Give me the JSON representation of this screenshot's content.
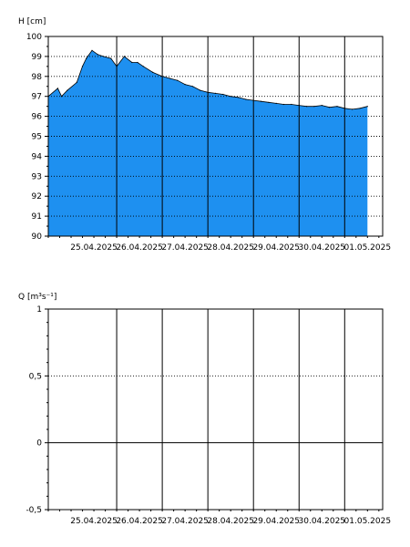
{
  "chart_data": [
    {
      "type": "area",
      "ylabel": "H [cm]",
      "ylim": [
        90,
        100
      ],
      "yticks": [
        "90",
        "91",
        "92",
        "93",
        "94",
        "95",
        "96",
        "97",
        "98",
        "99",
        "100"
      ],
      "xticks": [
        "25.04.2025",
        "26.04.2025",
        "27.04.2025",
        "28.04.2025",
        "29.04.2025",
        "30.04.2025",
        "01.05.2025"
      ],
      "xlim": [
        "2025-04-24T12:00",
        "2025-05-01T20:00"
      ],
      "fill_color": "#1E90F0",
      "series": [
        {
          "x": [
            "2025-04-24T12:00",
            "2025-04-24T17:00",
            "2025-04-24T19:00",
            "2025-04-24T22:00",
            "2025-04-25T03:00",
            "2025-04-25T06:00",
            "2025-04-25T08:00",
            "2025-04-25T11:00",
            "2025-04-25T14:00",
            "2025-04-25T17:00",
            "2025-04-25T21:00",
            "2025-04-26T00:00",
            "2025-04-26T04:00",
            "2025-04-26T08:00",
            "2025-04-26T11:00",
            "2025-04-26T14:00",
            "2025-04-26T19:00",
            "2025-04-27T00:00",
            "2025-04-27T04:00",
            "2025-04-27T08:00",
            "2025-04-27T12:00",
            "2025-04-27T16:00",
            "2025-04-27T20:00",
            "2025-04-28T00:00",
            "2025-04-28T04:00",
            "2025-04-28T08:00",
            "2025-04-28T12:00",
            "2025-04-28T16:00",
            "2025-04-28T20:00",
            "2025-04-29T00:00",
            "2025-04-29T04:00",
            "2025-04-29T08:00",
            "2025-04-29T12:00",
            "2025-04-29T16:00",
            "2025-04-29T20:00",
            "2025-04-30T00:00",
            "2025-04-30T04:00",
            "2025-04-30T08:00",
            "2025-04-30T12:00",
            "2025-04-30T16:00",
            "2025-04-30T20:00",
            "2025-05-01T00:00",
            "2025-05-01T04:00",
            "2025-05-01T08:00",
            "2025-05-01T12:00"
          ],
          "y": [
            97.0,
            97.4,
            97.0,
            97.3,
            97.7,
            98.5,
            98.9,
            99.3,
            99.1,
            99.0,
            98.9,
            98.5,
            99.0,
            98.7,
            98.7,
            98.5,
            98.2,
            98.0,
            97.9,
            97.8,
            97.6,
            97.5,
            97.3,
            97.2,
            97.15,
            97.1,
            97.0,
            96.95,
            96.85,
            96.8,
            96.75,
            96.7,
            96.65,
            96.6,
            96.6,
            96.55,
            96.5,
            96.5,
            96.55,
            96.45,
            96.5,
            96.4,
            96.35,
            96.4,
            96.5
          ]
        }
      ]
    },
    {
      "type": "line",
      "ylabel": "Q [m³s⁻¹]",
      "ylim": [
        -0.5,
        1
      ],
      "yticks": [
        "-0,5",
        "0",
        "0,5",
        "1"
      ],
      "xticks": [
        "25.04.2025",
        "26.04.2025",
        "27.04.2025",
        "28.04.2025",
        "29.04.2025",
        "30.04.2025",
        "01.05.2025"
      ],
      "xlim": [
        "2025-04-24T12:00",
        "2025-05-01T20:00"
      ],
      "series": []
    }
  ]
}
